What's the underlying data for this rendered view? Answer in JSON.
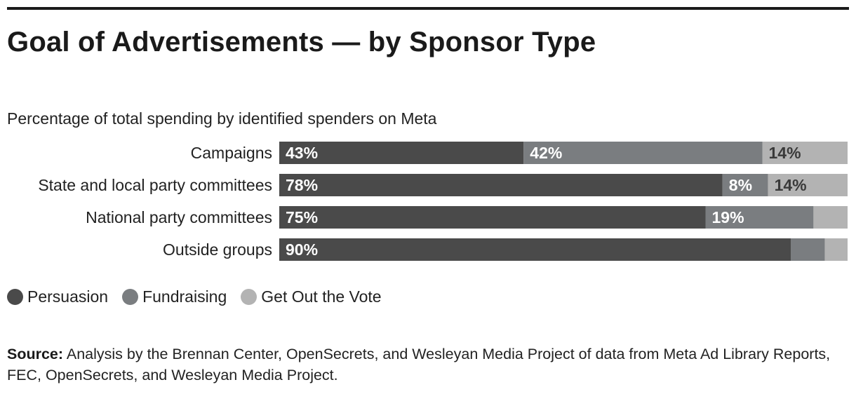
{
  "title": "Goal of Advertisements — by Sponsor Type",
  "subtitle": "Percentage of total spending by identified spenders on Meta",
  "source": {
    "label": "Source:",
    "text": "Analysis by the Brennan Center, OpenSecrets, and Wesleyan Media Project of data from Meta Ad Library Reports, FEC, OpenSecrets, and Wesleyan Media Project."
  },
  "legend": [
    {
      "name": "Persuasion",
      "color": "#4a4a4a"
    },
    {
      "name": "Fundraising",
      "color": "#7a7d80"
    },
    {
      "name": "Get Out the Vote",
      "color": "#b3b3b3"
    }
  ],
  "chart_data": {
    "type": "bar",
    "orientation": "horizontal",
    "stacked": true,
    "title": "Goal of Advertisements — by Sponsor Type",
    "subtitle": "Percentage of total spending by identified spenders on Meta",
    "xlabel": "",
    "ylabel": "",
    "xlim": [
      0,
      100
    ],
    "categories": [
      "Campaigns",
      "State and local party committees",
      "National party committees",
      "Outside groups"
    ],
    "series": [
      {
        "name": "Persuasion",
        "color": "#4a4a4a",
        "label_color": "#ffffff",
        "values": [
          43,
          78,
          75,
          90
        ],
        "labels": [
          "43%",
          "78%",
          "75%",
          "90%"
        ]
      },
      {
        "name": "Fundraising",
        "color": "#7a7d80",
        "label_color": "#ffffff",
        "values": [
          42,
          8,
          19,
          6
        ],
        "labels": [
          "42%",
          "8%",
          "19%",
          ""
        ]
      },
      {
        "name": "Get Out the Vote",
        "color": "#b3b3b3",
        "label_color": "#3a3a3a",
        "values": [
          14,
          14,
          6,
          4
        ],
        "labels": [
          "14%",
          "14%",
          "",
          ""
        ]
      }
    ],
    "legend_position": "bottom-left",
    "grid": false
  }
}
